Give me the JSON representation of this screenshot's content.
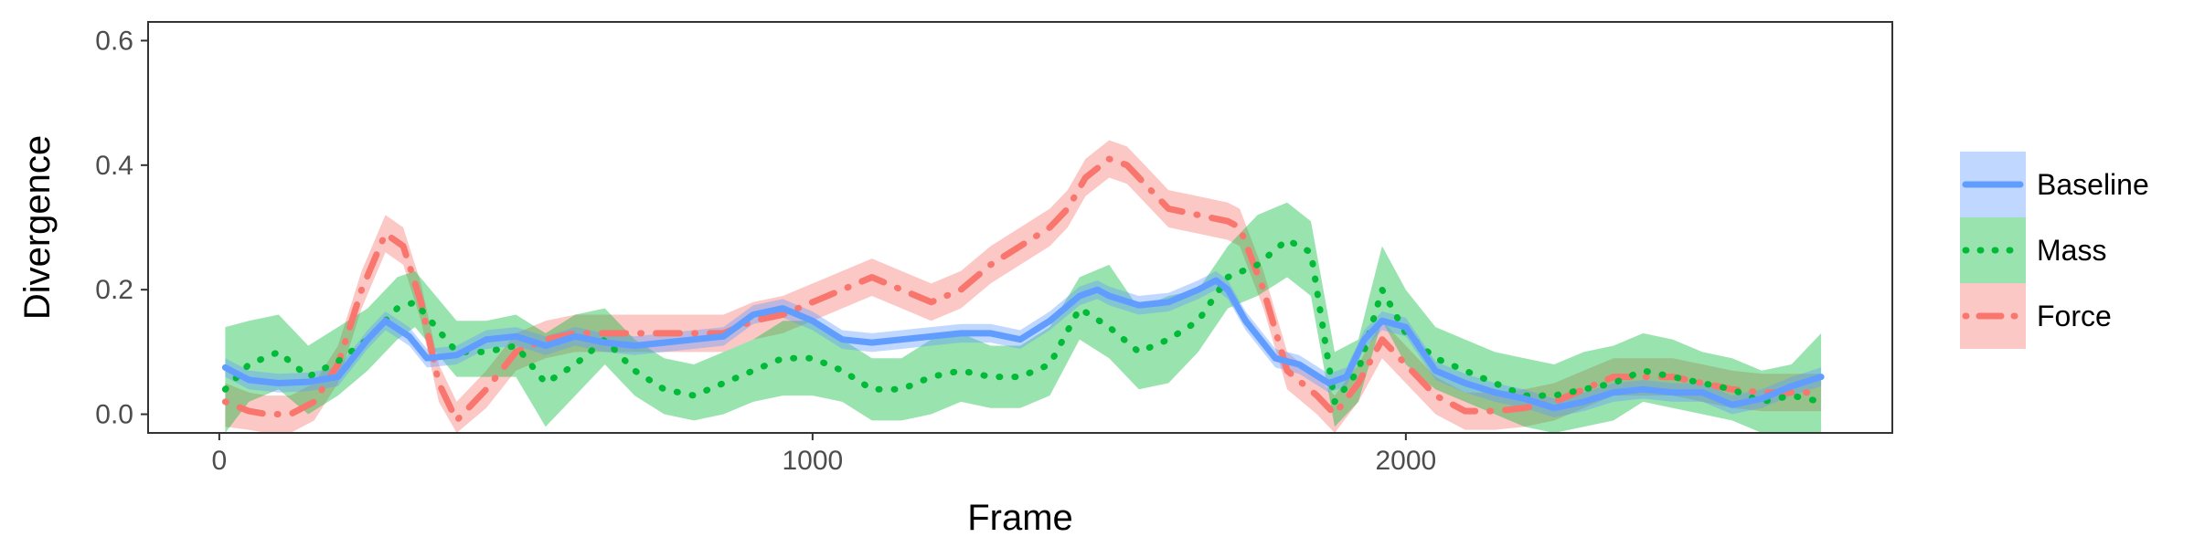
{
  "chart_data": {
    "type": "line",
    "xlabel": "Frame",
    "ylabel": "Divergence",
    "xlim": [
      -120,
      2820
    ],
    "ylim": [
      -0.03,
      0.63
    ],
    "x_ticks": [
      0,
      1000,
      2000
    ],
    "x_tick_labels": [
      "0",
      "1000",
      "2000"
    ],
    "y_ticks": [
      0.0,
      0.2,
      0.4,
      0.6
    ],
    "y_tick_labels": [
      "0.0",
      "0.2",
      "0.4",
      "0.6"
    ],
    "grid": false,
    "legend_position": "right",
    "series": [
      {
        "name": "Baseline",
        "color": "#619CFF",
        "dash": "solid",
        "x": [
          10,
          50,
          100,
          150,
          200,
          250,
          280,
          320,
          350,
          400,
          450,
          500,
          550,
          600,
          650,
          700,
          750,
          800,
          850,
          900,
          950,
          1000,
          1050,
          1100,
          1150,
          1200,
          1250,
          1300,
          1350,
          1400,
          1450,
          1480,
          1500,
          1550,
          1600,
          1650,
          1680,
          1700,
          1730,
          1780,
          1820,
          1870,
          1900,
          1930,
          1960,
          2000,
          2050,
          2100,
          2150,
          2200,
          2250,
          2300,
          2350,
          2400,
          2450,
          2500,
          2550,
          2600,
          2650,
          2700
        ],
        "y": [
          0.075,
          0.055,
          0.05,
          0.052,
          0.06,
          0.12,
          0.15,
          0.125,
          0.09,
          0.095,
          0.12,
          0.125,
          0.11,
          0.125,
          0.115,
          0.11,
          0.115,
          0.12,
          0.125,
          0.16,
          0.17,
          0.15,
          0.12,
          0.115,
          0.12,
          0.125,
          0.13,
          0.13,
          0.12,
          0.15,
          0.19,
          0.2,
          0.19,
          0.175,
          0.18,
          0.2,
          0.215,
          0.2,
          0.15,
          0.09,
          0.08,
          0.05,
          0.06,
          0.12,
          0.15,
          0.14,
          0.07,
          0.05,
          0.035,
          0.025,
          0.01,
          0.02,
          0.035,
          0.04,
          0.035,
          0.035,
          0.015,
          0.025,
          0.045,
          0.06
        ],
        "lower": [
          0.06,
          0.04,
          0.035,
          0.037,
          0.045,
          0.105,
          0.135,
          0.11,
          0.075,
          0.08,
          0.105,
          0.11,
          0.095,
          0.11,
          0.1,
          0.095,
          0.1,
          0.105,
          0.11,
          0.145,
          0.155,
          0.135,
          0.105,
          0.1,
          0.105,
          0.11,
          0.115,
          0.115,
          0.105,
          0.135,
          0.175,
          0.185,
          0.175,
          0.16,
          0.165,
          0.185,
          0.2,
          0.185,
          0.135,
          0.075,
          0.065,
          0.035,
          0.045,
          0.105,
          0.135,
          0.125,
          0.055,
          0.035,
          0.02,
          0.01,
          -0.005,
          0.005,
          0.02,
          0.025,
          0.02,
          0.02,
          0.0,
          0.01,
          0.03,
          0.045
        ],
        "upper": [
          0.09,
          0.07,
          0.065,
          0.067,
          0.075,
          0.135,
          0.165,
          0.14,
          0.105,
          0.11,
          0.135,
          0.14,
          0.125,
          0.14,
          0.13,
          0.125,
          0.13,
          0.135,
          0.14,
          0.175,
          0.185,
          0.165,
          0.135,
          0.13,
          0.135,
          0.14,
          0.145,
          0.145,
          0.135,
          0.165,
          0.205,
          0.215,
          0.205,
          0.19,
          0.195,
          0.215,
          0.23,
          0.215,
          0.165,
          0.105,
          0.095,
          0.065,
          0.075,
          0.135,
          0.165,
          0.155,
          0.085,
          0.065,
          0.05,
          0.04,
          0.025,
          0.035,
          0.05,
          0.055,
          0.05,
          0.05,
          0.03,
          0.04,
          0.06,
          0.075
        ]
      },
      {
        "name": "Mass",
        "color": "#00BA38",
        "dash": "dotted",
        "x": [
          10,
          50,
          100,
          150,
          200,
          250,
          300,
          330,
          400,
          450,
          500,
          550,
          600,
          650,
          700,
          750,
          800,
          850,
          900,
          950,
          1000,
          1050,
          1100,
          1150,
          1200,
          1250,
          1300,
          1350,
          1400,
          1450,
          1500,
          1550,
          1600,
          1650,
          1700,
          1750,
          1800,
          1840,
          1880,
          1920,
          1960,
          2000,
          2050,
          2100,
          2150,
          2200,
          2250,
          2300,
          2350,
          2400,
          2450,
          2500,
          2550,
          2600,
          2650,
          2700
        ],
        "y": [
          0.04,
          0.08,
          0.1,
          0.06,
          0.085,
          0.12,
          0.17,
          0.18,
          0.1,
          0.1,
          0.11,
          0.05,
          0.08,
          0.12,
          0.07,
          0.04,
          0.03,
          0.05,
          0.07,
          0.09,
          0.09,
          0.07,
          0.04,
          0.04,
          0.06,
          0.07,
          0.06,
          0.06,
          0.08,
          0.17,
          0.14,
          0.1,
          0.12,
          0.15,
          0.22,
          0.24,
          0.28,
          0.26,
          0.02,
          0.07,
          0.2,
          0.13,
          0.09,
          0.07,
          0.05,
          0.03,
          0.03,
          0.04,
          0.05,
          0.07,
          0.06,
          0.05,
          0.04,
          0.02,
          0.03,
          0.02
        ],
        "lower": [
          -0.03,
          0.02,
          0.04,
          0.0,
          0.03,
          0.07,
          0.12,
          0.14,
          0.06,
          0.06,
          0.06,
          -0.02,
          0.03,
          0.08,
          0.03,
          0.0,
          -0.01,
          0.0,
          0.02,
          0.03,
          0.03,
          0.02,
          -0.01,
          -0.01,
          0.0,
          0.02,
          0.01,
          0.01,
          0.03,
          0.12,
          0.09,
          0.04,
          0.05,
          0.1,
          0.17,
          0.19,
          0.22,
          0.19,
          -0.02,
          0.02,
          0.15,
          0.08,
          0.04,
          0.02,
          0.0,
          -0.02,
          -0.03,
          -0.02,
          -0.01,
          0.02,
          0.01,
          0.0,
          -0.01,
          -0.03,
          -0.03,
          -0.03
        ],
        "upper": [
          0.14,
          0.15,
          0.16,
          0.11,
          0.14,
          0.17,
          0.22,
          0.23,
          0.15,
          0.15,
          0.16,
          0.13,
          0.16,
          0.17,
          0.12,
          0.09,
          0.08,
          0.1,
          0.12,
          0.15,
          0.15,
          0.12,
          0.09,
          0.09,
          0.12,
          0.13,
          0.11,
          0.11,
          0.14,
          0.22,
          0.24,
          0.17,
          0.19,
          0.2,
          0.27,
          0.32,
          0.34,
          0.31,
          0.1,
          0.12,
          0.27,
          0.2,
          0.14,
          0.12,
          0.1,
          0.09,
          0.08,
          0.1,
          0.11,
          0.13,
          0.12,
          0.1,
          0.09,
          0.07,
          0.08,
          0.13
        ]
      },
      {
        "name": "Force",
        "color": "#F8766D",
        "dash": "dotdash",
        "x": [
          10,
          50,
          80,
          120,
          160,
          200,
          240,
          280,
          310,
          340,
          370,
          400,
          450,
          500,
          550,
          600,
          650,
          700,
          750,
          800,
          850,
          900,
          950,
          1000,
          1050,
          1100,
          1150,
          1200,
          1250,
          1300,
          1350,
          1400,
          1430,
          1460,
          1500,
          1530,
          1560,
          1600,
          1650,
          1700,
          1720,
          1760,
          1800,
          1850,
          1880,
          1920,
          1960,
          2000,
          2050,
          2100,
          2150,
          2200,
          2250,
          2300,
          2350,
          2400,
          2450,
          2500,
          2550,
          2600,
          2650,
          2700
        ],
        "y": [
          0.02,
          0.005,
          0.0,
          0.0,
          0.02,
          0.08,
          0.2,
          0.29,
          0.27,
          0.18,
          0.05,
          -0.01,
          0.04,
          0.1,
          0.12,
          0.13,
          0.13,
          0.13,
          0.13,
          0.13,
          0.13,
          0.15,
          0.16,
          0.18,
          0.2,
          0.22,
          0.2,
          0.18,
          0.2,
          0.24,
          0.27,
          0.3,
          0.33,
          0.38,
          0.41,
          0.4,
          0.37,
          0.33,
          0.32,
          0.31,
          0.3,
          0.2,
          0.07,
          0.03,
          0.0,
          0.05,
          0.12,
          0.08,
          0.03,
          0.005,
          0.005,
          0.01,
          0.02,
          0.04,
          0.06,
          0.06,
          0.06,
          0.05,
          0.04,
          0.035,
          0.035,
          0.035
        ],
        "lower": [
          -0.02,
          -0.025,
          -0.03,
          -0.03,
          -0.01,
          0.05,
          0.17,
          0.26,
          0.24,
          0.15,
          0.02,
          -0.03,
          0.01,
          0.07,
          0.09,
          0.1,
          0.1,
          0.1,
          0.1,
          0.1,
          0.1,
          0.12,
          0.13,
          0.15,
          0.17,
          0.19,
          0.17,
          0.15,
          0.17,
          0.21,
          0.24,
          0.27,
          0.3,
          0.35,
          0.38,
          0.37,
          0.34,
          0.3,
          0.29,
          0.28,
          0.27,
          0.17,
          0.04,
          0.0,
          -0.03,
          0.02,
          0.09,
          0.05,
          0.0,
          -0.025,
          -0.025,
          -0.02,
          -0.01,
          0.01,
          0.03,
          0.03,
          0.03,
          0.02,
          0.01,
          0.005,
          0.005,
          0.005
        ],
        "upper": [
          0.05,
          0.035,
          0.03,
          0.03,
          0.05,
          0.11,
          0.23,
          0.32,
          0.3,
          0.21,
          0.08,
          0.02,
          0.07,
          0.13,
          0.15,
          0.16,
          0.16,
          0.16,
          0.16,
          0.16,
          0.16,
          0.18,
          0.19,
          0.21,
          0.23,
          0.25,
          0.23,
          0.21,
          0.23,
          0.27,
          0.3,
          0.33,
          0.36,
          0.41,
          0.44,
          0.43,
          0.4,
          0.36,
          0.35,
          0.34,
          0.33,
          0.23,
          0.1,
          0.06,
          0.03,
          0.08,
          0.15,
          0.11,
          0.06,
          0.035,
          0.035,
          0.04,
          0.05,
          0.07,
          0.09,
          0.09,
          0.09,
          0.08,
          0.07,
          0.065,
          0.065,
          0.065
        ]
      }
    ]
  }
}
